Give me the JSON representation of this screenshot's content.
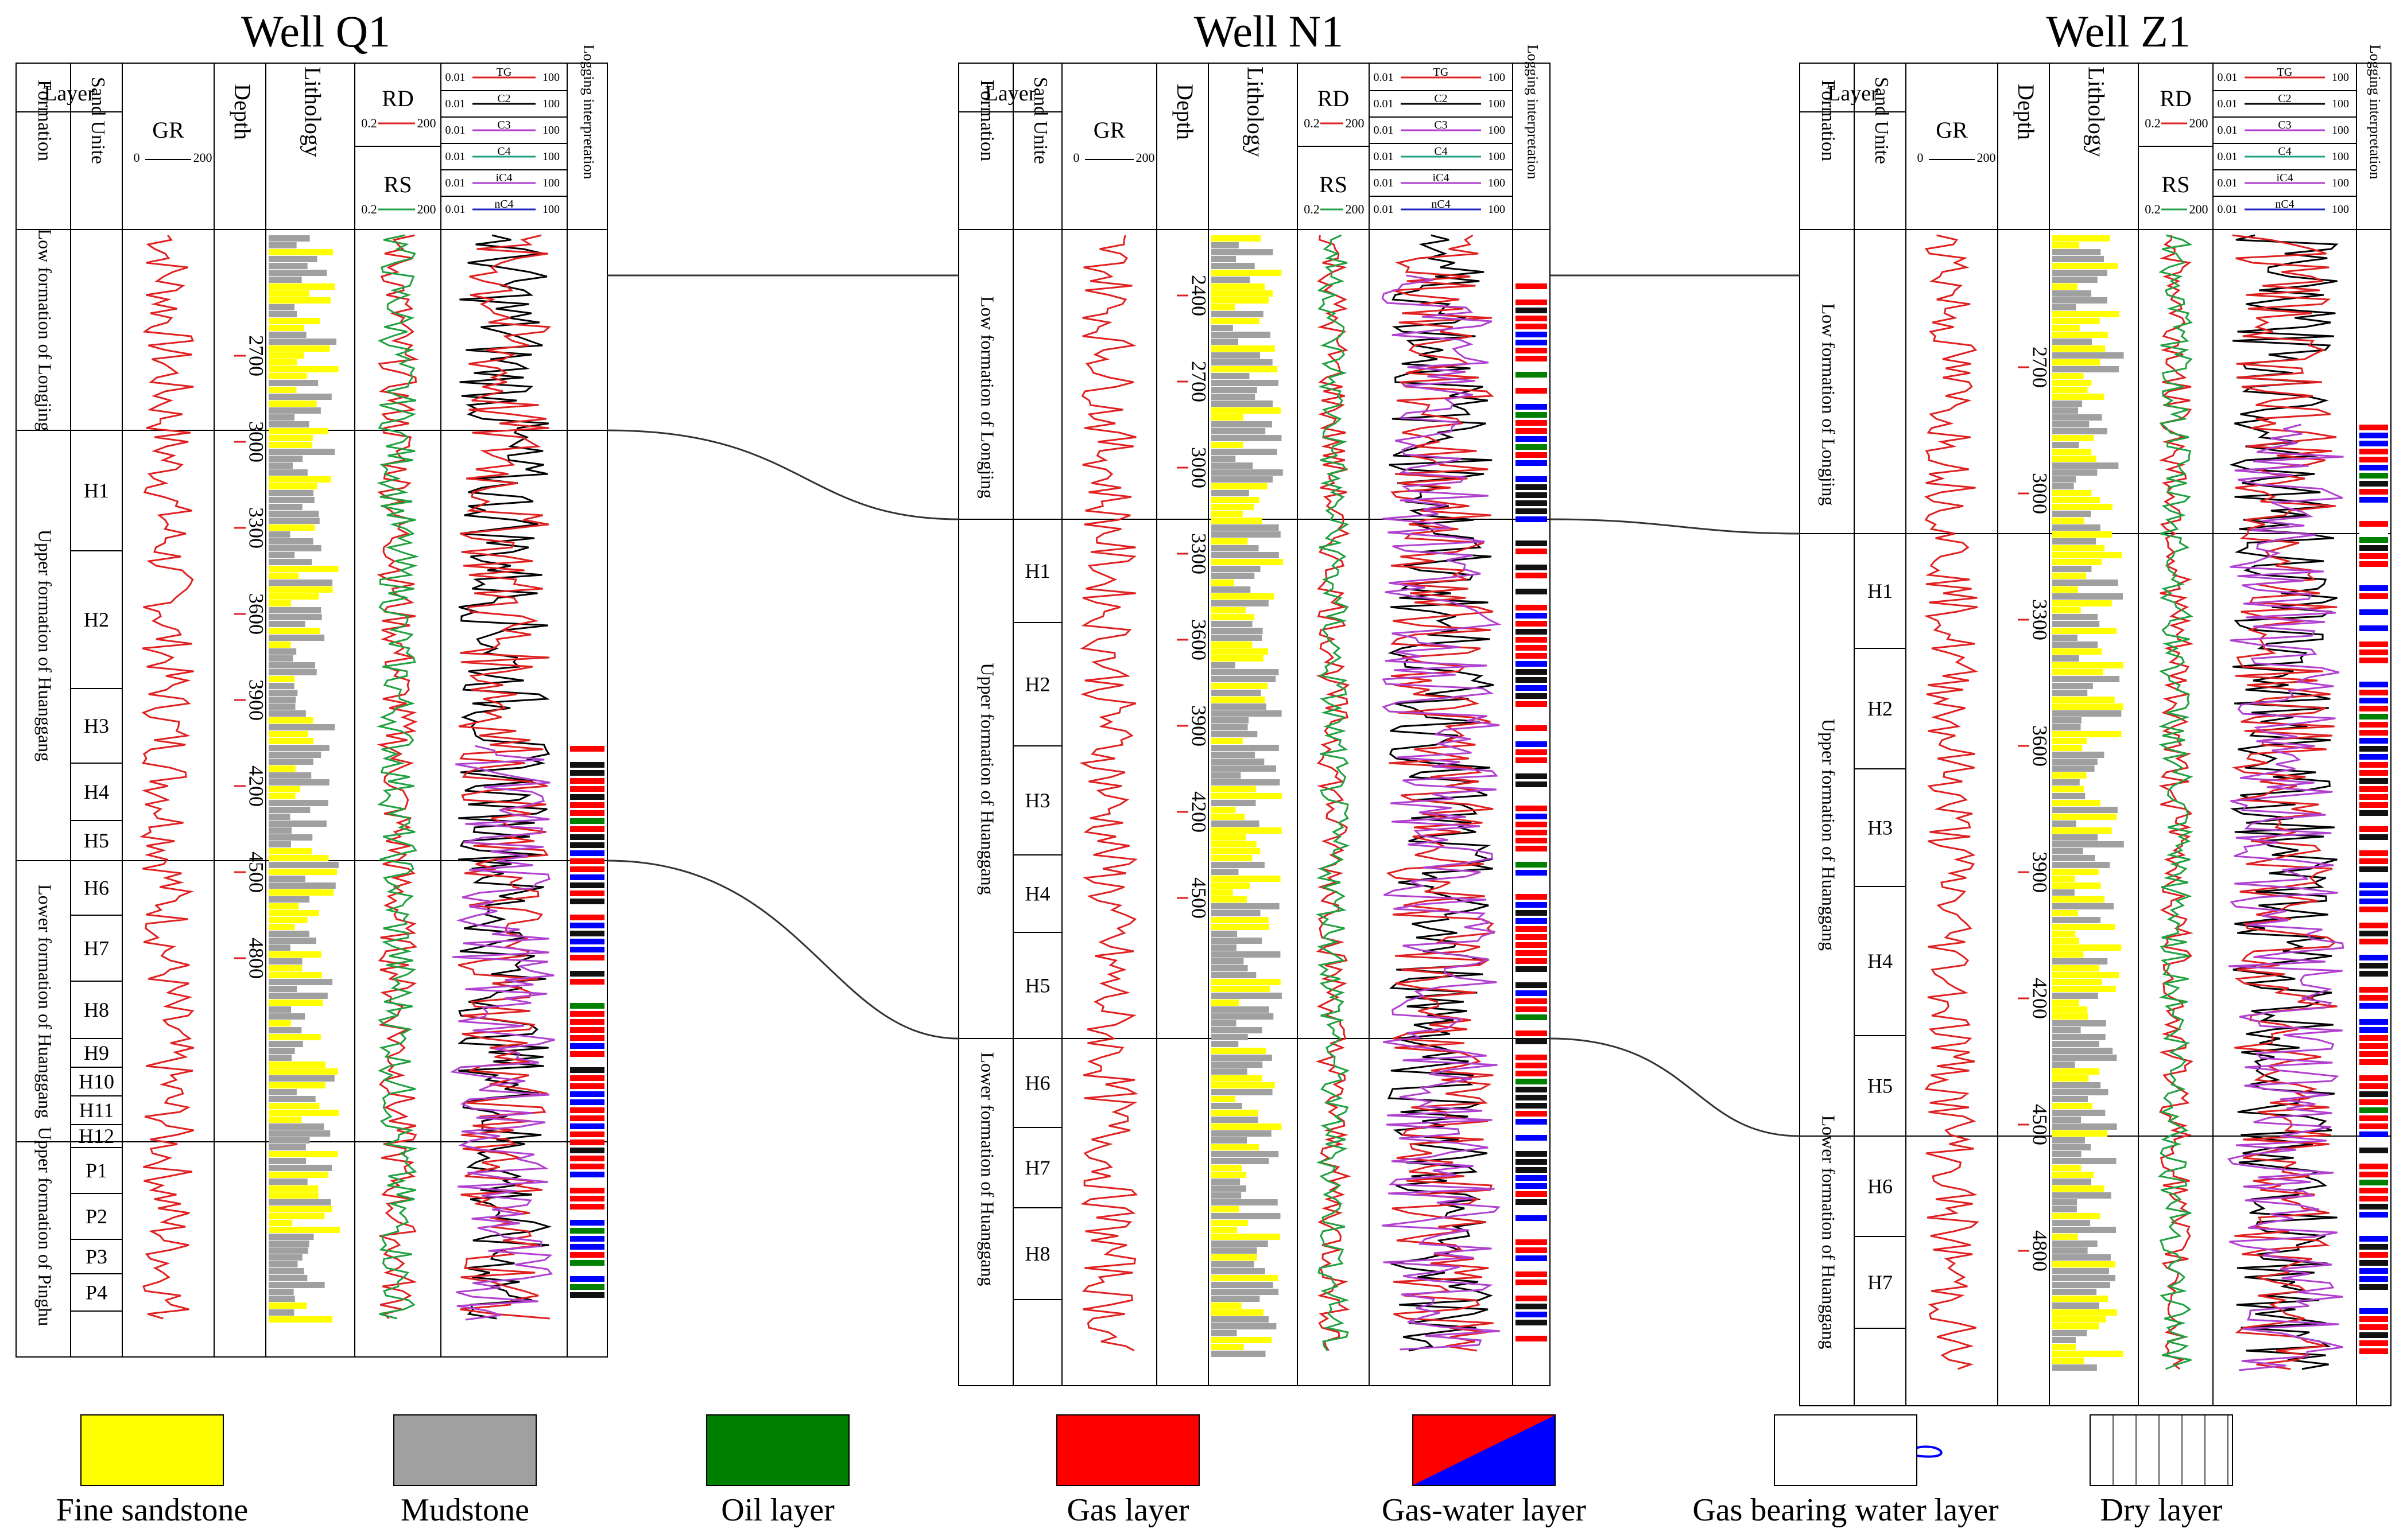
{
  "wells": [
    {
      "title": "Well Q1",
      "depths": [
        "2700",
        "3000",
        "3300",
        "3600",
        "3900",
        "4200",
        "4500",
        "4800"
      ],
      "formations": [
        "Low formation of Longjing",
        "Upper formation of Huanggang",
        "Lower formation of Huanggang",
        "Upper formation of Pinghu"
      ],
      "sands": [
        "H1",
        "H2",
        "H3",
        "H4",
        "H5",
        "H6",
        "H7",
        "H8",
        "H9",
        "H10",
        "H11",
        "H12",
        "P1",
        "P2",
        "P3",
        "P4"
      ]
    },
    {
      "title": "Well N1",
      "depths": [
        "2400",
        "2700",
        "3000",
        "3300",
        "3600",
        "3900",
        "4200",
        "4500"
      ],
      "formations": [
        "Low formation of Longjing",
        "Upper formation of Huanggang",
        "Lower formation of Huanggang"
      ],
      "sands": [
        "H1",
        "H2",
        "H3",
        "H4",
        "H5",
        "H6",
        "H7",
        "H8"
      ]
    },
    {
      "title": "Well Z1",
      "depths": [
        "2700",
        "3000",
        "3300",
        "3600",
        "3900",
        "4200",
        "4500",
        "4800"
      ],
      "formations": [
        "Low formation of Longjing",
        "Upper formation of Huanggang",
        "Lower formation of Huanggang"
      ],
      "sands": [
        "H1",
        "H2",
        "H3",
        "H4",
        "H5",
        "H6",
        "H7"
      ]
    }
  ],
  "headers": {
    "layer": "Layer",
    "formation": "Formation",
    "sand_unite": "Sand Unite",
    "gr": "GR",
    "gr_min": "0",
    "gr_max": "200",
    "depth": "Depth",
    "lithology": "Lithology",
    "rd": "RD",
    "rs": "RS",
    "res_min": "0.2",
    "res_max": "200",
    "gas_curves": [
      "TG",
      "C2",
      "C3",
      "C4",
      "iC4",
      "nC4"
    ],
    "gas_min": "0.01",
    "gas_max": "100",
    "interp": "Logging interpretation"
  },
  "legend": [
    "Fine sandstone",
    "Mudstone",
    "Oil layer",
    "Gas layer",
    "Gas-water layer",
    "Gas bearing water layer",
    "Dry layer"
  ],
  "colors": {
    "sand": "#ffff00",
    "mud": "#a0a0a0",
    "oil": "#008000",
    "gas": "#ff0000",
    "water": "#0000ff",
    "gr": "#e02020",
    "rs": "#20a040",
    "c2": "#000000",
    "c3": "#b040d0",
    "c4": "#20a080",
    "ic4": "#b040d0",
    "nc4": "#2020c0"
  }
}
